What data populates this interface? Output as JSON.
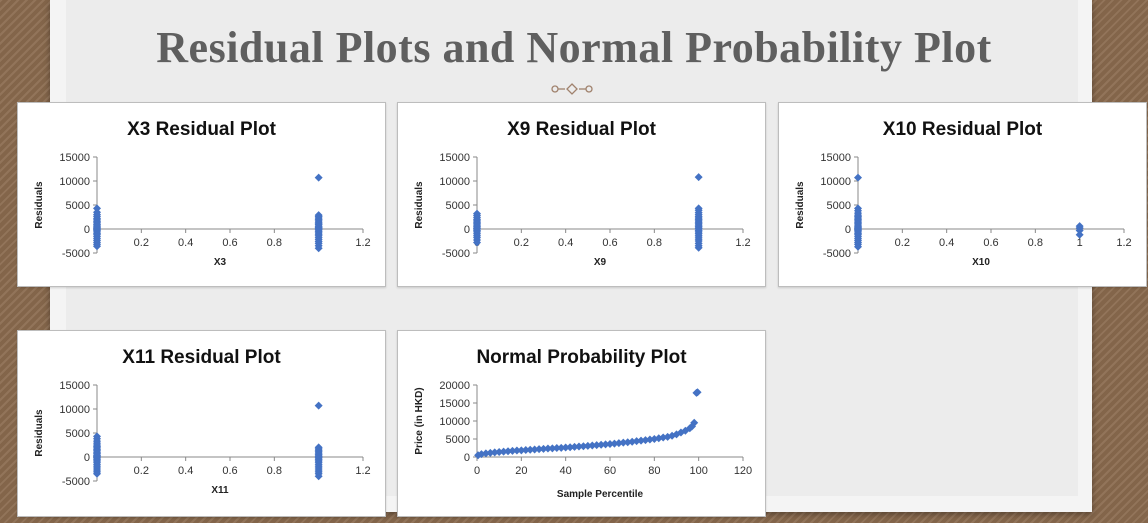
{
  "slide": {
    "title": "Residual Plots and Normal Probability Plot"
  },
  "colors": {
    "marker": "#4472c4",
    "slide_title": "#5f5f5f",
    "ornament": "#a0826d"
  },
  "chart_data": [
    {
      "type": "scatter",
      "title": "X3  Residual Plot",
      "xlabel": "X3",
      "ylabel": "Residuals",
      "xlim": [
        0,
        1.2
      ],
      "ylim": [
        -5000,
        15000
      ],
      "xticks": [
        "0",
        "0.2",
        "0.4",
        "0.6",
        "0.8",
        "1",
        "1.2"
      ],
      "yticks": [
        "15000",
        "10000",
        "5000",
        "0",
        "-5000"
      ],
      "series": [
        {
          "x": [
            0,
            0,
            0,
            0,
            0,
            0,
            0,
            0,
            0,
            0,
            0,
            0,
            0,
            0,
            0,
            0,
            0,
            0,
            0,
            0,
            0,
            0,
            0,
            0,
            1,
            1,
            1,
            1,
            1,
            1,
            1,
            1,
            1,
            1,
            1,
            1,
            1,
            1,
            1,
            1,
            1,
            1,
            1,
            1,
            1,
            1,
            1,
            1
          ],
          "y": [
            4300,
            3500,
            3000,
            2600,
            2200,
            1900,
            1600,
            1300,
            1000,
            800,
            500,
            300,
            100,
            -100,
            -300,
            -600,
            -900,
            -1200,
            -1600,
            -2000,
            -2400,
            -2800,
            -3200,
            -3600,
            10700,
            2900,
            2600,
            2300,
            2000,
            1700,
            1400,
            1100,
            900,
            600,
            400,
            200,
            0,
            -200,
            -500,
            -800,
            -1100,
            -1400,
            -1800,
            -2200,
            -2600,
            -3000,
            -3500,
            -4000
          ]
        }
      ]
    },
    {
      "type": "scatter",
      "title": "X9  Residual Plot",
      "xlabel": "X9",
      "ylabel": "Residuals",
      "xlim": [
        0,
        1.2
      ],
      "ylim": [
        -5000,
        15000
      ],
      "xticks": [
        "0",
        "0.2",
        "0.4",
        "0.6",
        "0.8",
        "1",
        "1.2"
      ],
      "yticks": [
        "15000",
        "10000",
        "5000",
        "0",
        "-5000"
      ],
      "series": [
        {
          "x": [
            0,
            0,
            0,
            0,
            0,
            0,
            0,
            0,
            0,
            0,
            0,
            0,
            0,
            0,
            0,
            0,
            0,
            0,
            1,
            1,
            1,
            1,
            1,
            1,
            1,
            1,
            1,
            1,
            1,
            1,
            1,
            1,
            1,
            1,
            1,
            1,
            1,
            1,
            1,
            1,
            1,
            1,
            1
          ],
          "y": [
            3200,
            2800,
            2400,
            2000,
            1700,
            1400,
            1100,
            800,
            500,
            200,
            0,
            -300,
            -600,
            -1000,
            -1400,
            -1800,
            -2300,
            -2800,
            10800,
            4300,
            3900,
            3400,
            3000,
            2600,
            2300,
            2000,
            1700,
            1400,
            1100,
            800,
            500,
            200,
            0,
            -300,
            -600,
            -900,
            -1300,
            -1700,
            -2100,
            -2500,
            -3000,
            -3500,
            -3900
          ]
        }
      ]
    },
    {
      "type": "scatter",
      "title": "X10  Residual Plot",
      "xlabel": "X10",
      "ylabel": "Residuals",
      "xlim": [
        0,
        1.2
      ],
      "ylim": [
        -5000,
        15000
      ],
      "xticks": [
        "0",
        "0.2",
        "0.4",
        "0.6",
        "0.8",
        "1",
        "1.2"
      ],
      "yticks": [
        "15000",
        "10000",
        "5000",
        "0",
        "-5000"
      ],
      "series": [
        {
          "x": [
            0,
            0,
            0,
            0,
            0,
            0,
            0,
            0,
            0,
            0,
            0,
            0,
            0,
            0,
            0,
            0,
            0,
            0,
            0,
            0,
            0,
            0,
            0,
            0,
            0,
            0,
            1,
            1,
            1,
            1
          ],
          "y": [
            10700,
            4300,
            3800,
            3300,
            2900,
            2600,
            2300,
            2000,
            1700,
            1400,
            1100,
            800,
            500,
            300,
            100,
            -100,
            -300,
            -600,
            -900,
            -1200,
            -1600,
            -2000,
            -2400,
            -2800,
            -3200,
            -3700,
            600,
            200,
            -300,
            -1200
          ]
        }
      ]
    },
    {
      "type": "scatter",
      "title": "X11  Residual Plot",
      "xlabel": "X11",
      "ylabel": "Residuals",
      "xlim": [
        0,
        1.2
      ],
      "ylim": [
        -5000,
        15000
      ],
      "xticks": [
        "0",
        "0.2",
        "0.4",
        "0.6",
        "0.8",
        "1",
        "1.2"
      ],
      "yticks": [
        "15000",
        "10000",
        "5000",
        "0",
        "-5000"
      ],
      "series": [
        {
          "x": [
            0,
            0,
            0,
            0,
            0,
            0,
            0,
            0,
            0,
            0,
            0,
            0,
            0,
            0,
            0,
            0,
            0,
            0,
            0,
            0,
            0,
            0,
            0,
            0,
            1,
            1,
            1,
            1,
            1,
            1,
            1,
            1,
            1,
            1,
            1,
            1,
            1,
            1,
            1,
            1,
            1,
            1,
            1,
            1
          ],
          "y": [
            4300,
            3800,
            3300,
            2900,
            2500,
            2200,
            1900,
            1600,
            1300,
            1000,
            700,
            400,
            200,
            0,
            -200,
            -500,
            -800,
            -1100,
            -1500,
            -1900,
            -2300,
            -2700,
            -3100,
            -3500,
            10700,
            2000,
            1700,
            1400,
            1100,
            800,
            500,
            200,
            0,
            -200,
            -500,
            -800,
            -1100,
            -1500,
            -1900,
            -2300,
            -2700,
            -3100,
            -3500,
            -4000
          ]
        }
      ]
    },
    {
      "type": "scatter",
      "title": "Normal Probability Plot",
      "xlabel": "Sample Percentile",
      "ylabel": "Price (in HKD)",
      "xlim": [
        0,
        120
      ],
      "ylim": [
        0,
        20000
      ],
      "xticks": [
        "0",
        "20",
        "40",
        "60",
        "80",
        "100",
        "120"
      ],
      "yticks": [
        "20000",
        "15000",
        "10000",
        "5000",
        "0"
      ],
      "series": [
        {
          "x": [
            0.5,
            2,
            4,
            6,
            8,
            10,
            12,
            14,
            16,
            18,
            20,
            22,
            24,
            26,
            28,
            30,
            32,
            34,
            36,
            38,
            40,
            42,
            44,
            46,
            48,
            50,
            52,
            54,
            56,
            58,
            60,
            62,
            64,
            66,
            68,
            70,
            72,
            74,
            76,
            78,
            80,
            82,
            84,
            86,
            88,
            90,
            92,
            94,
            96,
            97,
            98,
            99,
            99.5
          ],
          "y": [
            500,
            800,
            1000,
            1150,
            1300,
            1400,
            1500,
            1600,
            1700,
            1800,
            1850,
            1950,
            2000,
            2100,
            2200,
            2250,
            2350,
            2400,
            2500,
            2550,
            2650,
            2700,
            2800,
            2900,
            3000,
            3100,
            3200,
            3300,
            3400,
            3500,
            3600,
            3700,
            3850,
            4000,
            4100,
            4250,
            4400,
            4550,
            4700,
            4850,
            5000,
            5200,
            5400,
            5600,
            5900,
            6300,
            6800,
            7300,
            8000,
            8500,
            9500,
            17800,
            18000
          ]
        }
      ]
    }
  ]
}
